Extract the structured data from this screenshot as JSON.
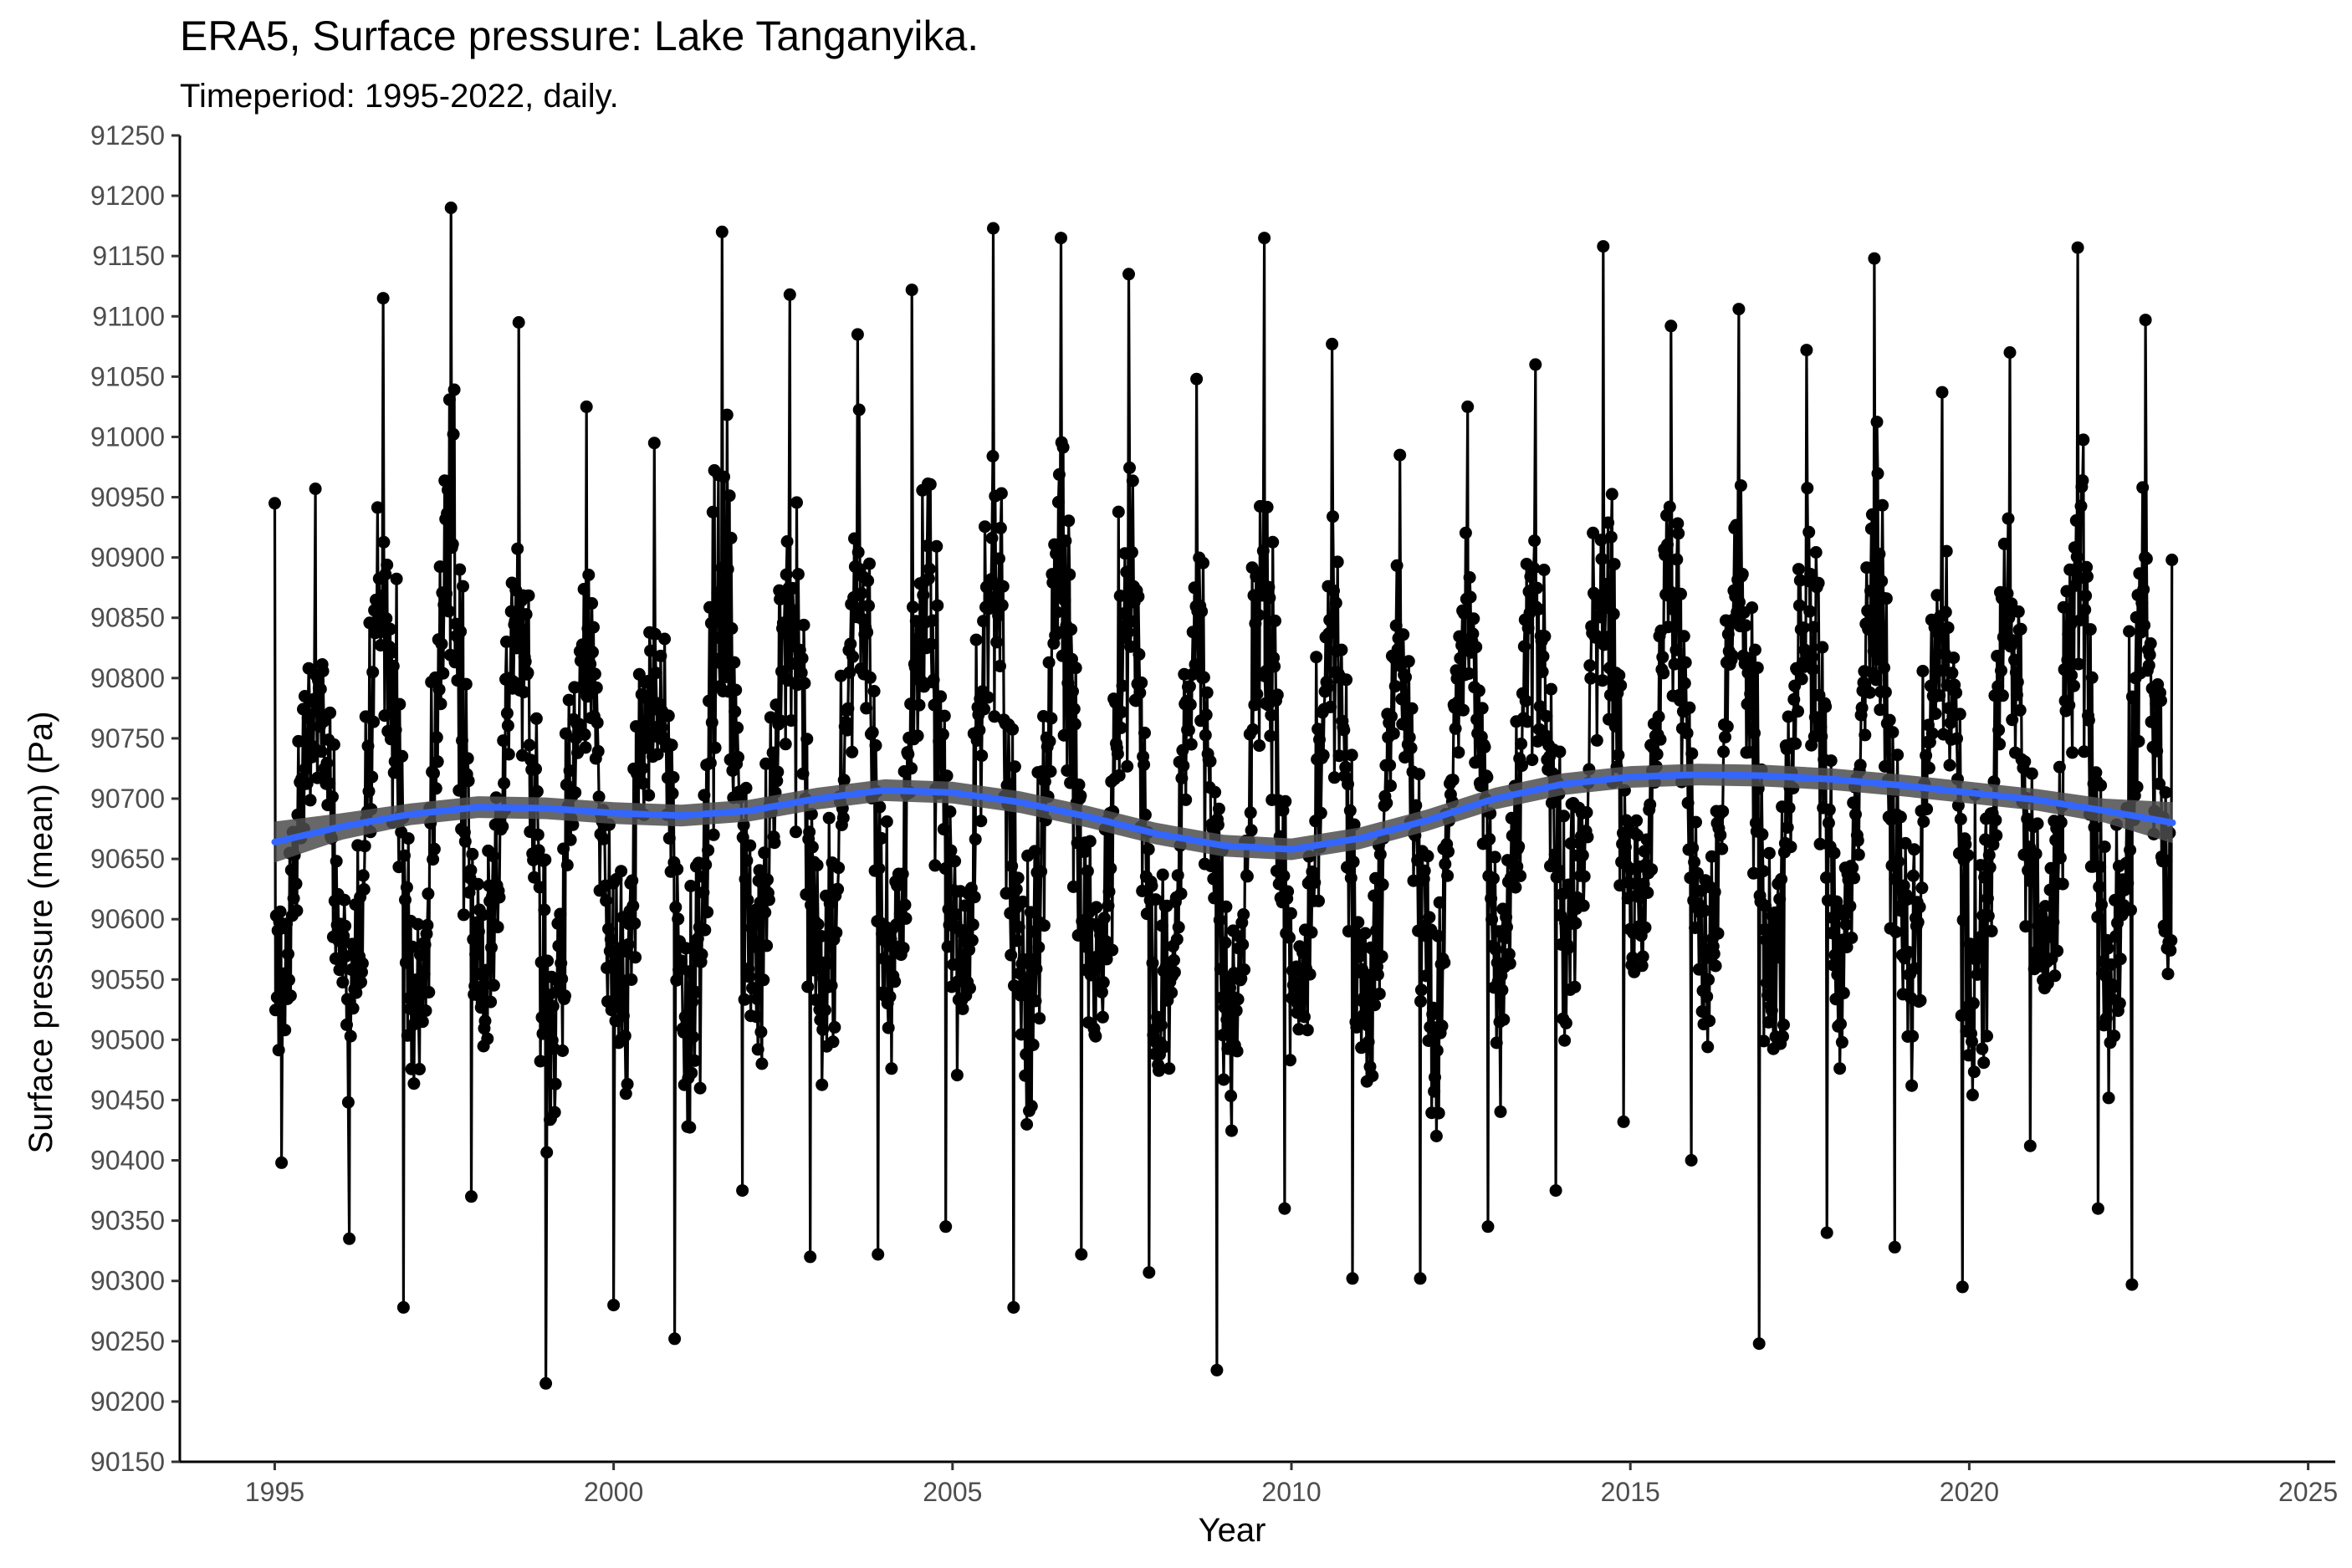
{
  "chart_data": {
    "type": "line",
    "title": "ERA5, Surface pressure: Lake Tanganyika.",
    "subtitle": "Timeperiod: 1995-2022, daily.",
    "xlabel": "Year",
    "ylabel": "Surface pressure (mean) (Pa)",
    "xlim": [
      1993.6,
      2025.4
    ],
    "ylim": [
      90150,
      91250
    ],
    "x_ticks": [
      1995,
      2000,
      2005,
      2010,
      2015,
      2020,
      2025
    ],
    "y_ticks": [
      90150,
      90200,
      90250,
      90300,
      90350,
      90400,
      90450,
      90500,
      90550,
      90600,
      90650,
      90700,
      90750,
      90800,
      90850,
      90900,
      90950,
      91000,
      91050,
      91100,
      91150,
      91200,
      91250
    ],
    "grid": false,
    "legend": "none",
    "series": [
      {
        "kind": "daily-observations",
        "color": "#000000",
        "marker": "point",
        "annual_peaks": [
          {
            "x": 1995.0,
            "y": 90945
          },
          {
            "x": 1995.6,
            "y": 90957
          },
          {
            "x": 1996.6,
            "y": 91115
          },
          {
            "x": 1997.6,
            "y": 91190
          },
          {
            "x": 1998.6,
            "y": 91095
          },
          {
            "x": 1999.6,
            "y": 91025
          },
          {
            "x": 2000.6,
            "y": 90995
          },
          {
            "x": 2001.6,
            "y": 91170
          },
          {
            "x": 2002.6,
            "y": 91118
          },
          {
            "x": 2003.6,
            "y": 91085
          },
          {
            "x": 2004.4,
            "y": 91122
          },
          {
            "x": 2005.6,
            "y": 91173
          },
          {
            "x": 2006.6,
            "y": 91165
          },
          {
            "x": 2007.6,
            "y": 91135
          },
          {
            "x": 2008.6,
            "y": 91048
          },
          {
            "x": 2009.6,
            "y": 91165
          },
          {
            "x": 2010.6,
            "y": 91077
          },
          {
            "x": 2011.6,
            "y": 90985
          },
          {
            "x": 2012.6,
            "y": 91025
          },
          {
            "x": 2013.6,
            "y": 91060
          },
          {
            "x": 2014.6,
            "y": 91158
          },
          {
            "x": 2015.6,
            "y": 91092
          },
          {
            "x": 2016.6,
            "y": 91106
          },
          {
            "x": 2017.6,
            "y": 91072
          },
          {
            "x": 2018.6,
            "y": 91148
          },
          {
            "x": 2019.6,
            "y": 91037
          },
          {
            "x": 2020.6,
            "y": 91070
          },
          {
            "x": 2021.6,
            "y": 91157
          },
          {
            "x": 2022.6,
            "y": 91097
          }
        ],
        "annual_troughs": [
          {
            "x": 1995.1,
            "y": 90398
          },
          {
            "x": 1996.1,
            "y": 90335
          },
          {
            "x": 1996.9,
            "y": 90278
          },
          {
            "x": 1997.9,
            "y": 90370
          },
          {
            "x": 1999.0,
            "y": 90215
          },
          {
            "x": 2000.0,
            "y": 90280
          },
          {
            "x": 2000.9,
            "y": 90252
          },
          {
            "x": 2001.9,
            "y": 90375
          },
          {
            "x": 2002.9,
            "y": 90320
          },
          {
            "x": 2003.9,
            "y": 90322
          },
          {
            "x": 2004.9,
            "y": 90345
          },
          {
            "x": 2005.9,
            "y": 90278
          },
          {
            "x": 2006.9,
            "y": 90322
          },
          {
            "x": 2007.9,
            "y": 90307
          },
          {
            "x": 2008.9,
            "y": 90226
          },
          {
            "x": 2009.9,
            "y": 90360
          },
          {
            "x": 2010.9,
            "y": 90302
          },
          {
            "x": 2011.9,
            "y": 90302
          },
          {
            "x": 2012.9,
            "y": 90345
          },
          {
            "x": 2013.9,
            "y": 90375
          },
          {
            "x": 2014.9,
            "y": 90432
          },
          {
            "x": 2015.9,
            "y": 90400
          },
          {
            "x": 2016.9,
            "y": 90248
          },
          {
            "x": 2017.9,
            "y": 90340
          },
          {
            "x": 2018.9,
            "y": 90328
          },
          {
            "x": 2019.9,
            "y": 90295
          },
          {
            "x": 2020.9,
            "y": 90412
          },
          {
            "x": 2021.9,
            "y": 90360
          },
          {
            "x": 2022.4,
            "y": 90297
          }
        ],
        "end_value": {
          "x": 2022.99,
          "y": 90898
        }
      },
      {
        "kind": "smoothed-trend",
        "color": "#3366ff",
        "band_color": "#4d4d4d",
        "points": [
          {
            "x": 1995.0,
            "y": 90664,
            "lo": 90647,
            "hi": 90681
          },
          {
            "x": 1996.0,
            "y": 90677,
            "lo": 90666,
            "hi": 90688
          },
          {
            "x": 1997.0,
            "y": 90687,
            "lo": 90678,
            "hi": 90696
          },
          {
            "x": 1998.0,
            "y": 90693,
            "lo": 90684,
            "hi": 90702
          },
          {
            "x": 1999.0,
            "y": 90692,
            "lo": 90683,
            "hi": 90701
          },
          {
            "x": 2000.0,
            "y": 90688,
            "lo": 90679,
            "hi": 90697
          },
          {
            "x": 2001.0,
            "y": 90686,
            "lo": 90677,
            "hi": 90695
          },
          {
            "x": 2002.0,
            "y": 90690,
            "lo": 90681,
            "hi": 90699
          },
          {
            "x": 2003.0,
            "y": 90700,
            "lo": 90691,
            "hi": 90709
          },
          {
            "x": 2004.0,
            "y": 90707,
            "lo": 90698,
            "hi": 90716
          },
          {
            "x": 2005.0,
            "y": 90705,
            "lo": 90696,
            "hi": 90714
          },
          {
            "x": 2006.0,
            "y": 90697,
            "lo": 90688,
            "hi": 90706
          },
          {
            "x": 2007.0,
            "y": 90685,
            "lo": 90676,
            "hi": 90694
          },
          {
            "x": 2008.0,
            "y": 90671,
            "lo": 90662,
            "hi": 90680
          },
          {
            "x": 2009.0,
            "y": 90661,
            "lo": 90652,
            "hi": 90670
          },
          {
            "x": 2010.0,
            "y": 90658,
            "lo": 90649,
            "hi": 90667
          },
          {
            "x": 2011.0,
            "y": 90667,
            "lo": 90658,
            "hi": 90676
          },
          {
            "x": 2012.0,
            "y": 90682,
            "lo": 90673,
            "hi": 90691
          },
          {
            "x": 2013.0,
            "y": 90700,
            "lo": 90691,
            "hi": 90709
          },
          {
            "x": 2014.0,
            "y": 90712,
            "lo": 90703,
            "hi": 90721
          },
          {
            "x": 2015.0,
            "y": 90718,
            "lo": 90709,
            "hi": 90727
          },
          {
            "x": 2016.0,
            "y": 90720,
            "lo": 90711,
            "hi": 90729
          },
          {
            "x": 2017.0,
            "y": 90719,
            "lo": 90710,
            "hi": 90728
          },
          {
            "x": 2018.0,
            "y": 90716,
            "lo": 90707,
            "hi": 90725
          },
          {
            "x": 2019.0,
            "y": 90711,
            "lo": 90702,
            "hi": 90720
          },
          {
            "x": 2020.0,
            "y": 90705,
            "lo": 90696,
            "hi": 90714
          },
          {
            "x": 2021.0,
            "y": 90699,
            "lo": 90690,
            "hi": 90708
          },
          {
            "x": 2022.0,
            "y": 90690,
            "lo": 90680,
            "hi": 90700
          },
          {
            "x": 2023.0,
            "y": 90680,
            "lo": 90663,
            "hi": 90697
          }
        ]
      }
    ]
  }
}
